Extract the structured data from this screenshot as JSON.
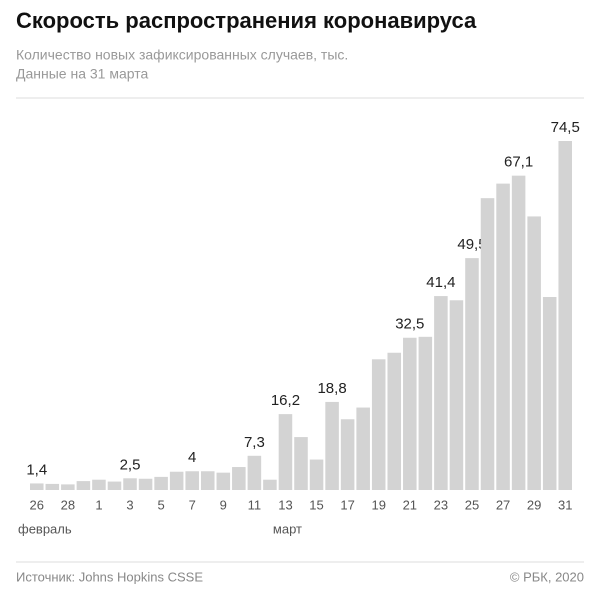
{
  "chart_data": {
    "type": "bar",
    "title": "Скорость распространения коронавируса",
    "subtitle": [
      "Количество новых зафиксированных случаев, тыс.",
      "Данные на 31 марта"
    ],
    "categories": [
      "26",
      null,
      "28",
      null,
      "1",
      null,
      "3",
      null,
      "5",
      null,
      "7",
      null,
      "9",
      null,
      "11",
      null,
      "13",
      null,
      "15",
      null,
      "17",
      null,
      "19",
      null,
      "21",
      null,
      "23",
      null,
      "25",
      null,
      "27",
      null,
      "29",
      null,
      "31"
    ],
    "month_labels": [
      "февраль",
      "март"
    ],
    "values": [
      1.4,
      1.3,
      1.2,
      1.9,
      2.2,
      1.8,
      2.5,
      2.4,
      2.8,
      3.9,
      4,
      4,
      3.7,
      4.9,
      7.3,
      2.2,
      16.2,
      11.3,
      6.5,
      18.8,
      15.1,
      17.6,
      27.9,
      29.3,
      32.5,
      32.7,
      41.4,
      40.5,
      49.5,
      62.3,
      65.4,
      67.1,
      58.4,
      41.2,
      74.5
    ],
    "value_labels": [
      "1,4",
      null,
      null,
      null,
      null,
      null,
      "2,5",
      null,
      null,
      null,
      "4",
      null,
      null,
      null,
      "7,3",
      null,
      "16,2",
      null,
      null,
      "18,8",
      null,
      null,
      null,
      null,
      "32,5",
      null,
      "41,4",
      null,
      "49,5",
      null,
      null,
      "67,1",
      null,
      null,
      "74,5"
    ],
    "color": "#d3d3d3",
    "source": "Источник: Johns Hopkins CSSE",
    "copyright": "© РБК, 2020"
  }
}
